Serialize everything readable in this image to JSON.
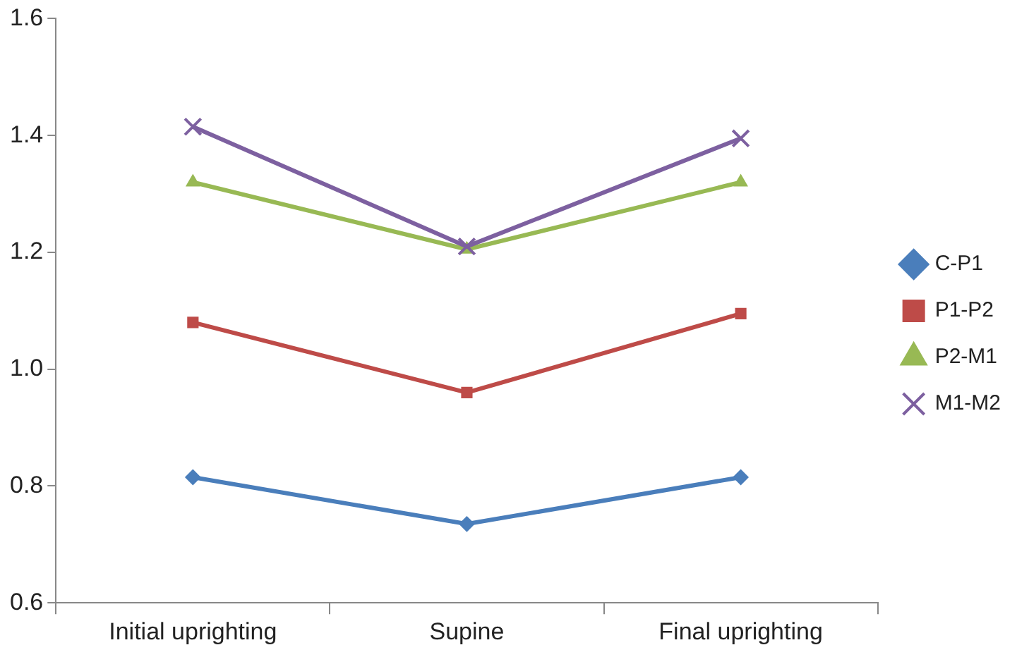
{
  "chart_data": {
    "type": "line",
    "categories": [
      "Initial uprighting",
      "Supine",
      "Final uprighting"
    ],
    "series": [
      {
        "name": "C-P1",
        "color": "#4a7ebb",
        "marker": "diamond",
        "values": [
          0.815,
          0.735,
          0.815
        ]
      },
      {
        "name": "P1-P2",
        "color": "#be4b48",
        "marker": "square",
        "values": [
          1.08,
          0.96,
          1.095
        ]
      },
      {
        "name": "P2-M1",
        "color": "#98b954",
        "marker": "triangle",
        "values": [
          1.32,
          1.205,
          1.32
        ]
      },
      {
        "name": "M1-M2",
        "color": "#7d60a0",
        "marker": "cross",
        "values": [
          1.415,
          1.21,
          1.395
        ]
      }
    ],
    "ylim": [
      0.6,
      1.6
    ],
    "yticks": [
      {
        "value": 0.6,
        "label": "0.6"
      },
      {
        "value": 0.8,
        "label": "0.8"
      },
      {
        "value": 1,
        "label": "1.0"
      },
      {
        "value": 1.2,
        "label": "1.2"
      },
      {
        "value": 1.4,
        "label": "1.4"
      },
      {
        "value": 1.6,
        "label": "1.6"
      }
    ],
    "grid": false,
    "legend": "right",
    "line_style": "solid"
  }
}
